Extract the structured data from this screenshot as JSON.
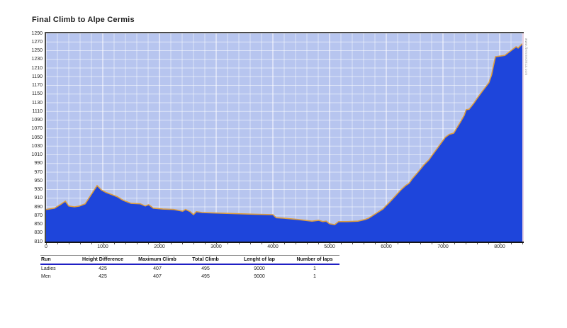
{
  "header": {
    "title": "Final Climb to Alpe Cermis"
  },
  "watermark": {
    "text": "www.fiemme2013.com"
  },
  "colors": {
    "plot_bg": "#b7c5ef",
    "area_fill": "#1e45db",
    "profile_line": "#dd9d3e",
    "gridline": "#ffffff",
    "axis_dark": "#4a4a4a",
    "axis_black": "#161616",
    "header_rule_blue": "#1f1fc4"
  },
  "chart_data": {
    "type": "area",
    "title": "Final Climb to Alpe Cermis",
    "xlabel": "",
    "ylabel": "",
    "xlim": [
      0,
      8400
    ],
    "ylim": [
      810,
      1290
    ],
    "x_ticks": [
      0,
      1000,
      2000,
      3000,
      4000,
      5000,
      6000,
      7000,
      8000
    ],
    "y_ticks": [
      1290,
      1270,
      1250,
      1230,
      1210,
      1190,
      1170,
      1150,
      1130,
      1110,
      1090,
      1070,
      1050,
      1030,
      1010,
      990,
      970,
      950,
      930,
      910,
      890,
      870,
      850,
      830,
      810
    ],
    "grid": {
      "x_step": 200,
      "x_major_step": 1000,
      "y_step": 20,
      "on": true
    },
    "legend": "none",
    "series": [
      {
        "name": "elevation profile",
        "points": [
          [
            0,
            884
          ],
          [
            150,
            887
          ],
          [
            250,
            895
          ],
          [
            340,
            903
          ],
          [
            400,
            892
          ],
          [
            500,
            890
          ],
          [
            590,
            892
          ],
          [
            690,
            897
          ],
          [
            780,
            915
          ],
          [
            850,
            929
          ],
          [
            900,
            939
          ],
          [
            975,
            929
          ],
          [
            1060,
            923
          ],
          [
            1160,
            918
          ],
          [
            1260,
            913
          ],
          [
            1360,
            905
          ],
          [
            1500,
            898
          ],
          [
            1660,
            897
          ],
          [
            1750,
            892
          ],
          [
            1810,
            895
          ],
          [
            1890,
            887
          ],
          [
            2060,
            885
          ],
          [
            2250,
            884
          ],
          [
            2410,
            880
          ],
          [
            2460,
            884
          ],
          [
            2540,
            879
          ],
          [
            2600,
            872
          ],
          [
            2650,
            879
          ],
          [
            2750,
            877
          ],
          [
            2950,
            876
          ],
          [
            3190,
            875
          ],
          [
            3440,
            874
          ],
          [
            3690,
            873
          ],
          [
            4000,
            872
          ],
          [
            4060,
            865
          ],
          [
            4190,
            864
          ],
          [
            4440,
            861
          ],
          [
            4690,
            857
          ],
          [
            4810,
            859
          ],
          [
            4880,
            856
          ],
          [
            4940,
            857
          ],
          [
            5000,
            851
          ],
          [
            5090,
            849
          ],
          [
            5160,
            856
          ],
          [
            5310,
            856
          ],
          [
            5500,
            857
          ],
          [
            5630,
            861
          ],
          [
            5690,
            864
          ],
          [
            5810,
            874
          ],
          [
            5940,
            885
          ],
          [
            6060,
            901
          ],
          [
            6160,
            915
          ],
          [
            6250,
            928
          ],
          [
            6340,
            939
          ],
          [
            6400,
            944
          ],
          [
            6460,
            955
          ],
          [
            6560,
            970
          ],
          [
            6660,
            986
          ],
          [
            6750,
            998
          ],
          [
            6850,
            1016
          ],
          [
            6940,
            1032
          ],
          [
            7040,
            1050
          ],
          [
            7110,
            1057
          ],
          [
            7190,
            1060
          ],
          [
            7250,
            1073
          ],
          [
            7310,
            1086
          ],
          [
            7375,
            1101
          ],
          [
            7410,
            1114
          ],
          [
            7460,
            1115
          ],
          [
            7540,
            1128
          ],
          [
            7630,
            1145
          ],
          [
            7710,
            1159
          ],
          [
            7810,
            1176
          ],
          [
            7860,
            1195
          ],
          [
            7890,
            1215
          ],
          [
            7925,
            1236
          ],
          [
            8090,
            1239
          ],
          [
            8190,
            1249
          ],
          [
            8290,
            1259
          ],
          [
            8325,
            1256
          ],
          [
            8400,
            1266
          ]
        ]
      }
    ]
  },
  "table": {
    "columns": [
      "Run",
      "Height Difference",
      "Maximum Climb",
      "Total Climb",
      "Lenght of lap",
      "Number of laps"
    ],
    "rows": [
      [
        "Ladies",
        "425",
        "407",
        "495",
        "9000",
        "1"
      ],
      [
        "Men",
        "425",
        "407",
        "495",
        "9000",
        "1"
      ]
    ]
  }
}
